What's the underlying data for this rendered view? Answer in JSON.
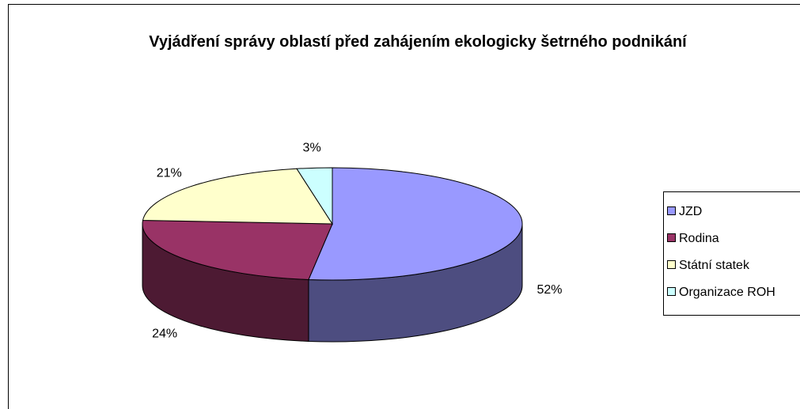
{
  "chart_data": {
    "type": "pie3d",
    "title": "Vyjádření správy oblastí před zahájením ekologicky šetrného podnikání",
    "categories": [
      "JZD",
      "Rodina",
      "Státní statek",
      "Organizace ROH"
    ],
    "values": [
      52,
      24,
      21,
      3
    ],
    "value_labels": [
      "52%",
      "24%",
      "21%",
      "3%"
    ],
    "colors": [
      "#9999ff",
      "#993366",
      "#ffffcc",
      "#ccffff"
    ],
    "legend": "right"
  }
}
